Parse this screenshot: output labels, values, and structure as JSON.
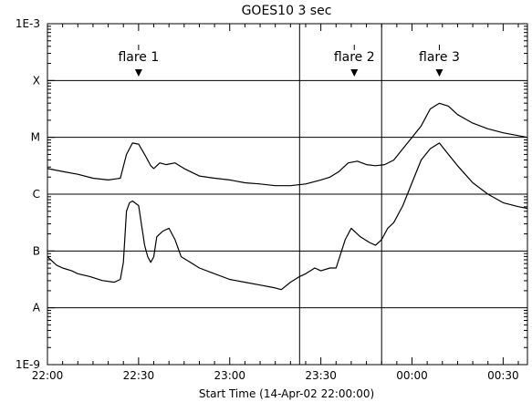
{
  "chart_data": {
    "type": "line",
    "title": "GOES10 3 sec",
    "xlabel": "Start Time (14-Apr-02 22:00:00)",
    "ylabel": "",
    "x_unit": "minutes",
    "xlim": [
      0,
      158
    ],
    "ylim": [
      "1E-9",
      "1E-3"
    ],
    "y_scale": "log",
    "x_ticks": [
      {
        "value": 0,
        "label": "22:00"
      },
      {
        "value": 30,
        "label": "22:30"
      },
      {
        "value": 60,
        "label": "23:00"
      },
      {
        "value": 90,
        "label": "23:30"
      },
      {
        "value": 120,
        "label": "00:00"
      },
      {
        "value": 150,
        "label": "00:30"
      }
    ],
    "y_ticks": [
      {
        "exp": -9,
        "label": "1E-9"
      },
      {
        "exp": -8,
        "label": "A"
      },
      {
        "exp": -7,
        "label": "B"
      },
      {
        "exp": -6,
        "label": "C"
      },
      {
        "exp": -5,
        "label": "M"
      },
      {
        "exp": -4,
        "label": "X"
      },
      {
        "exp": -3,
        "label": "1E-3"
      }
    ],
    "grid": "horizontal",
    "vlines": [
      83,
      110
    ],
    "annotations": [
      {
        "label": "flare 1",
        "x": 30
      },
      {
        "label": "flare 2",
        "x": 101
      },
      {
        "label": "flare 3",
        "x": 129
      }
    ],
    "series": [
      {
        "x": [
          0,
          5,
          10,
          15,
          20,
          24,
          26,
          28,
          30,
          32,
          34,
          35,
          37,
          39,
          42,
          45,
          50,
          55,
          60,
          65,
          70,
          75,
          80,
          85,
          90,
          93,
          96,
          99,
          102,
          105,
          108,
          111,
          114,
          117,
          120,
          123,
          126,
          129,
          132,
          135,
          140,
          145,
          150,
          155,
          158
        ],
        "exp": [
          -5.55,
          -5.6,
          -5.65,
          -5.72,
          -5.75,
          -5.72,
          -5.3,
          -5.1,
          -5.12,
          -5.3,
          -5.5,
          -5.55,
          -5.45,
          -5.48,
          -5.45,
          -5.55,
          -5.68,
          -5.72,
          -5.75,
          -5.8,
          -5.82,
          -5.85,
          -5.85,
          -5.82,
          -5.75,
          -5.7,
          -5.6,
          -5.45,
          -5.42,
          -5.48,
          -5.5,
          -5.48,
          -5.4,
          -5.2,
          -5.0,
          -4.8,
          -4.5,
          -4.4,
          -4.45,
          -4.6,
          -4.75,
          -4.85,
          -4.92,
          -4.97,
          -5.0
        ]
      },
      {
        "x": [
          0,
          3,
          5,
          8,
          10,
          14,
          18,
          22,
          24,
          25,
          26,
          27,
          28,
          30,
          32,
          33,
          34,
          35,
          36,
          37,
          38,
          40,
          42,
          44,
          47,
          50,
          55,
          60,
          65,
          70,
          75,
          77,
          80,
          83,
          85,
          88,
          90,
          93,
          95,
          98,
          100,
          103,
          106,
          108,
          110,
          112,
          114,
          117,
          120,
          123,
          126,
          129,
          132,
          135,
          140,
          145,
          150,
          155,
          158
        ],
        "exp": [
          -7.1,
          -7.25,
          -7.3,
          -7.35,
          -7.4,
          -7.45,
          -7.52,
          -7.55,
          -7.5,
          -7.2,
          -6.3,
          -6.15,
          -6.12,
          -6.2,
          -6.9,
          -7.1,
          -7.2,
          -7.1,
          -6.75,
          -6.7,
          -6.65,
          -6.6,
          -6.8,
          -7.1,
          -7.2,
          -7.3,
          -7.4,
          -7.5,
          -7.55,
          -7.6,
          -7.65,
          -7.68,
          -7.55,
          -7.45,
          -7.4,
          -7.3,
          -7.35,
          -7.3,
          -7.3,
          -6.8,
          -6.6,
          -6.75,
          -6.85,
          -6.9,
          -6.8,
          -6.6,
          -6.5,
          -6.2,
          -5.8,
          -5.4,
          -5.2,
          -5.1,
          -5.3,
          -5.5,
          -5.8,
          -6.0,
          -6.15,
          -6.22,
          -6.25
        ]
      }
    ]
  }
}
